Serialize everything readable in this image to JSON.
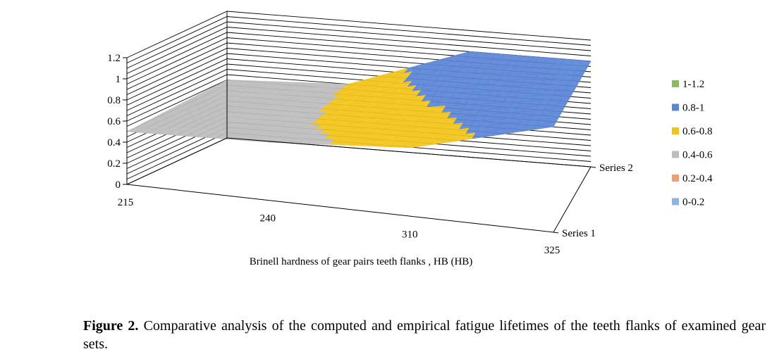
{
  "chart_data": {
    "type": "surface",
    "title": "",
    "categories": [
      "215",
      "240",
      "310",
      "325"
    ],
    "series": [
      {
        "name": "Series 1",
        "values": [
          0.5,
          0.55,
          0.65,
          1.0
        ]
      },
      {
        "name": "Series 2",
        "values": [
          0.55,
          0.6,
          1.0,
          1.0
        ]
      }
    ],
    "xlabel": "Brinell hardness of gear pairs teeth flanks , HB (HB)",
    "zlim": [
      0,
      1.2
    ],
    "z_ticks": [
      "0",
      "0.2",
      "0.4",
      "0.6",
      "0.8",
      "1",
      "1.2"
    ],
    "grid": true,
    "legend_position": "right",
    "bands": [
      {
        "label": "1-1.2",
        "color": "#8fbc5a"
      },
      {
        "label": "0.8-1",
        "color": "#5b86d6"
      },
      {
        "label": "0.6-0.8",
        "color": "#f2c41a"
      },
      {
        "label": "0.4-0.6",
        "color": "#bdbdbd"
      },
      {
        "label": "0.2-0.4",
        "color": "#f0a070"
      },
      {
        "label": "0-0.2",
        "color": "#8fb4e0"
      }
    ]
  },
  "caption": {
    "label": "Figure 2.",
    "text": " Comparative analysis of the computed and empirical fatigue lifetimes of the teeth flanks of examined gear sets."
  }
}
